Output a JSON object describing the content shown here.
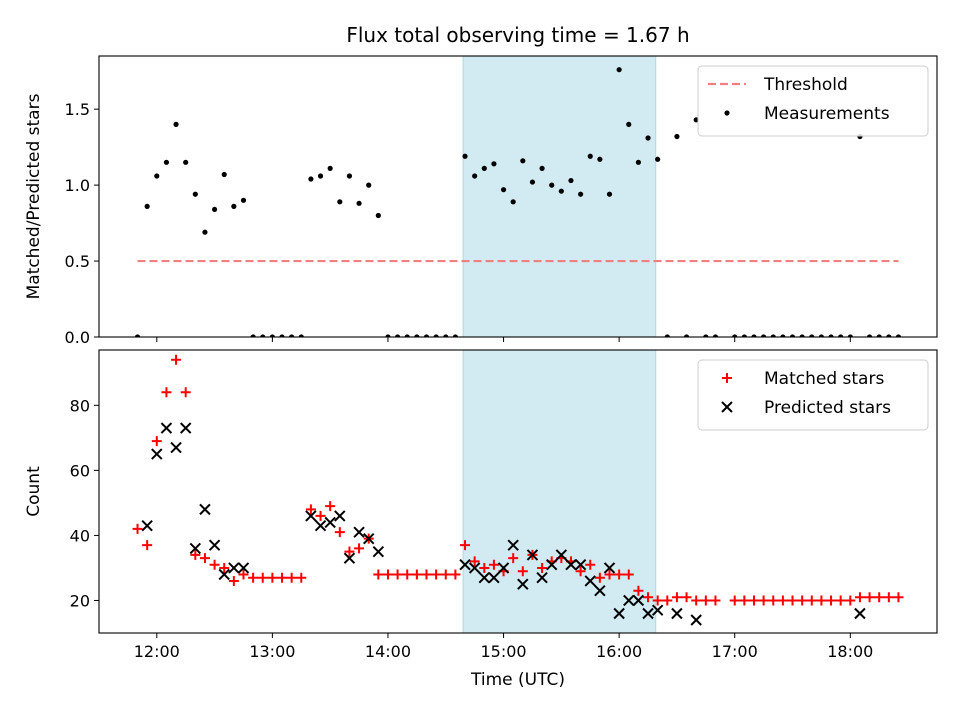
{
  "figure": {
    "title": "Flux total observing time = 1.67 h",
    "shaded_span_label": "",
    "shaded_span_color": "#add8e6"
  },
  "chart_data": [
    {
      "type": "scatter",
      "ylabel": "Matched/Predicted stars",
      "xlabel": "",
      "xlim": [
        "11:30",
        "18:45"
      ],
      "ylim": [
        0,
        1.85
      ],
      "yticks": [
        0.0,
        0.5,
        1.0,
        1.5
      ],
      "ytick_labels": [
        "0.0",
        "0.5",
        "1.0",
        "1.5"
      ],
      "grid": false,
      "legend": "top-right",
      "shaded_span": [
        "14:39",
        "16:19"
      ],
      "threshold": {
        "name": "Threshold",
        "value": 0.5,
        "x": [
          "11:50",
          "18:25"
        ],
        "color": "#f08080"
      },
      "series": [
        {
          "name": "Measurements",
          "color": "#000000",
          "marker": "dot",
          "points": [
            [
              "11:50",
              0.0
            ],
            [
              "11:55",
              0.86
            ],
            [
              "12:00",
              1.06
            ],
            [
              "12:05",
              1.15
            ],
            [
              "12:10",
              1.4
            ],
            [
              "12:15",
              1.15
            ],
            [
              "12:20",
              0.94
            ],
            [
              "12:25",
              0.69
            ],
            [
              "12:30",
              0.84
            ],
            [
              "12:35",
              1.07
            ],
            [
              "12:40",
              0.86
            ],
            [
              "12:45",
              0.9
            ],
            [
              "12:50",
              0.0
            ],
            [
              "12:55",
              0.0
            ],
            [
              "13:00",
              0.0
            ],
            [
              "13:05",
              0.0
            ],
            [
              "13:10",
              0.0
            ],
            [
              "13:15",
              0.0
            ],
            [
              "13:20",
              1.04
            ],
            [
              "13:25",
              1.06
            ],
            [
              "13:30",
              1.11
            ],
            [
              "13:35",
              0.89
            ],
            [
              "13:40",
              1.06
            ],
            [
              "13:45",
              0.88
            ],
            [
              "13:50",
              1.0
            ],
            [
              "13:55",
              0.8
            ],
            [
              "14:00",
              0.0
            ],
            [
              "14:05",
              0.0
            ],
            [
              "14:10",
              0.0
            ],
            [
              "14:15",
              0.0
            ],
            [
              "14:20",
              0.0
            ],
            [
              "14:25",
              0.0
            ],
            [
              "14:30",
              0.0
            ],
            [
              "14:35",
              0.0
            ],
            [
              "14:40",
              1.19
            ],
            [
              "14:45",
              1.06
            ],
            [
              "14:50",
              1.11
            ],
            [
              "14:55",
              1.14
            ],
            [
              "15:00",
              0.97
            ],
            [
              "15:05",
              0.89
            ],
            [
              "15:10",
              1.16
            ],
            [
              "15:15",
              1.02
            ],
            [
              "15:20",
              1.11
            ],
            [
              "15:25",
              1.0
            ],
            [
              "15:30",
              0.96
            ],
            [
              "15:35",
              1.03
            ],
            [
              "15:40",
              0.94
            ],
            [
              "15:45",
              1.19
            ],
            [
              "15:50",
              1.17
            ],
            [
              "15:55",
              0.94
            ],
            [
              "16:00",
              1.76
            ],
            [
              "16:05",
              1.4
            ],
            [
              "16:10",
              1.15
            ],
            [
              "16:15",
              1.31
            ],
            [
              "16:20",
              1.17
            ],
            [
              "16:25",
              0.0
            ],
            [
              "16:30",
              1.32
            ],
            [
              "16:35",
              0.0
            ],
            [
              "16:40",
              1.43
            ],
            [
              "16:45",
              0.0
            ],
            [
              "16:50",
              0.0
            ],
            [
              "17:00",
              0.0
            ],
            [
              "17:05",
              0.0
            ],
            [
              "17:10",
              0.0
            ],
            [
              "17:15",
              0.0
            ],
            [
              "17:20",
              0.0
            ],
            [
              "17:25",
              0.0
            ],
            [
              "17:30",
              0.0
            ],
            [
              "17:35",
              0.0
            ],
            [
              "17:40",
              0.0
            ],
            [
              "17:45",
              0.0
            ],
            [
              "17:50",
              0.0
            ],
            [
              "17:55",
              0.0
            ],
            [
              "18:00",
              0.0
            ],
            [
              "18:05",
              1.32
            ],
            [
              "18:10",
              0.0
            ],
            [
              "18:15",
              0.0
            ],
            [
              "18:20",
              0.0
            ],
            [
              "18:25",
              0.0
            ]
          ]
        }
      ]
    },
    {
      "type": "scatter",
      "ylabel": "Count",
      "xlabel": "Time (UTC)",
      "xlim": [
        "11:30",
        "18:45"
      ],
      "ylim": [
        10,
        97
      ],
      "yticks": [
        20,
        40,
        60,
        80
      ],
      "ytick_labels": [
        "20",
        "40",
        "60",
        "80"
      ],
      "xticks": [
        "12:00",
        "13:00",
        "14:00",
        "15:00",
        "16:00",
        "17:00",
        "18:00"
      ],
      "xtick_labels": [
        "12:00",
        "13:00",
        "14:00",
        "15:00",
        "16:00",
        "17:00",
        "18:00"
      ],
      "grid": false,
      "legend": "top-right",
      "shaded_span": [
        "14:39",
        "16:19"
      ],
      "series": [
        {
          "name": "Matched stars",
          "color": "#ff0000",
          "marker": "plus",
          "points": [
            [
              "11:50",
              42
            ],
            [
              "11:55",
              37
            ],
            [
              "12:00",
              69
            ],
            [
              "12:05",
              84
            ],
            [
              "12:10",
              94
            ],
            [
              "12:15",
              84
            ],
            [
              "12:20",
              34
            ],
            [
              "12:25",
              33
            ],
            [
              "12:30",
              31
            ],
            [
              "12:35",
              30
            ],
            [
              "12:40",
              26
            ],
            [
              "12:45",
              28
            ],
            [
              "12:50",
              27
            ],
            [
              "12:55",
              27
            ],
            [
              "13:00",
              27
            ],
            [
              "13:05",
              27
            ],
            [
              "13:10",
              27
            ],
            [
              "13:15",
              27
            ],
            [
              "13:20",
              48
            ],
            [
              "13:25",
              46
            ],
            [
              "13:30",
              49
            ],
            [
              "13:35",
              41
            ],
            [
              "13:40",
              35
            ],
            [
              "13:45",
              36
            ],
            [
              "13:50",
              39
            ],
            [
              "13:55",
              28
            ],
            [
              "14:00",
              28
            ],
            [
              "14:05",
              28
            ],
            [
              "14:10",
              28
            ],
            [
              "14:15",
              28
            ],
            [
              "14:20",
              28
            ],
            [
              "14:25",
              28
            ],
            [
              "14:30",
              28
            ],
            [
              "14:35",
              28
            ],
            [
              "14:40",
              37
            ],
            [
              "14:45",
              32
            ],
            [
              "14:50",
              30
            ],
            [
              "14:55",
              31
            ],
            [
              "15:00",
              29
            ],
            [
              "15:05",
              33
            ],
            [
              "15:10",
              29
            ],
            [
              "15:15",
              34
            ],
            [
              "15:20",
              30
            ],
            [
              "15:25",
              32
            ],
            [
              "15:30",
              33
            ],
            [
              "15:35",
              32
            ],
            [
              "15:40",
              29
            ],
            [
              "15:45",
              31
            ],
            [
              "15:50",
              27
            ],
            [
              "15:55",
              28
            ],
            [
              "16:00",
              28
            ],
            [
              "16:05",
              28
            ],
            [
              "16:10",
              23
            ],
            [
              "16:15",
              21
            ],
            [
              "16:20",
              20
            ],
            [
              "16:25",
              20
            ],
            [
              "16:30",
              21
            ],
            [
              "16:35",
              21
            ],
            [
              "16:40",
              20
            ],
            [
              "16:45",
              20
            ],
            [
              "16:50",
              20
            ],
            [
              "17:00",
              20
            ],
            [
              "17:05",
              20
            ],
            [
              "17:10",
              20
            ],
            [
              "17:15",
              20
            ],
            [
              "17:20",
              20
            ],
            [
              "17:25",
              20
            ],
            [
              "17:30",
              20
            ],
            [
              "17:35",
              20
            ],
            [
              "17:40",
              20
            ],
            [
              "17:45",
              20
            ],
            [
              "17:50",
              20
            ],
            [
              "17:55",
              20
            ],
            [
              "18:00",
              20
            ],
            [
              "18:05",
              21
            ],
            [
              "18:10",
              21
            ],
            [
              "18:15",
              21
            ],
            [
              "18:20",
              21
            ],
            [
              "18:25",
              21
            ]
          ]
        },
        {
          "name": "Predicted stars",
          "color": "#000000",
          "marker": "cross",
          "points": [
            [
              "11:55",
              43
            ],
            [
              "12:00",
              65
            ],
            [
              "12:05",
              73
            ],
            [
              "12:10",
              67
            ],
            [
              "12:15",
              73
            ],
            [
              "12:20",
              36
            ],
            [
              "12:25",
              48
            ],
            [
              "12:30",
              37
            ],
            [
              "12:35",
              28
            ],
            [
              "12:40",
              30
            ],
            [
              "12:45",
              30
            ],
            [
              "13:20",
              46
            ],
            [
              "13:25",
              43
            ],
            [
              "13:30",
              44
            ],
            [
              "13:35",
              46
            ],
            [
              "13:40",
              33
            ],
            [
              "13:45",
              41
            ],
            [
              "13:50",
              39
            ],
            [
              "13:55",
              35
            ],
            [
              "14:40",
              31
            ],
            [
              "14:45",
              30
            ],
            [
              "14:50",
              27
            ],
            [
              "14:55",
              27
            ],
            [
              "15:00",
              30
            ],
            [
              "15:05",
              37
            ],
            [
              "15:10",
              25
            ],
            [
              "15:15",
              34
            ],
            [
              "15:20",
              27
            ],
            [
              "15:25",
              31
            ],
            [
              "15:30",
              34
            ],
            [
              "15:35",
              31
            ],
            [
              "15:40",
              31
            ],
            [
              "15:45",
              26
            ],
            [
              "15:50",
              23
            ],
            [
              "15:55",
              30
            ],
            [
              "16:00",
              16
            ],
            [
              "16:05",
              20
            ],
            [
              "16:10",
              20
            ],
            [
              "16:15",
              16
            ],
            [
              "16:20",
              17
            ],
            [
              "16:30",
              16
            ],
            [
              "16:40",
              14
            ],
            [
              "18:05",
              16
            ]
          ]
        }
      ]
    }
  ]
}
